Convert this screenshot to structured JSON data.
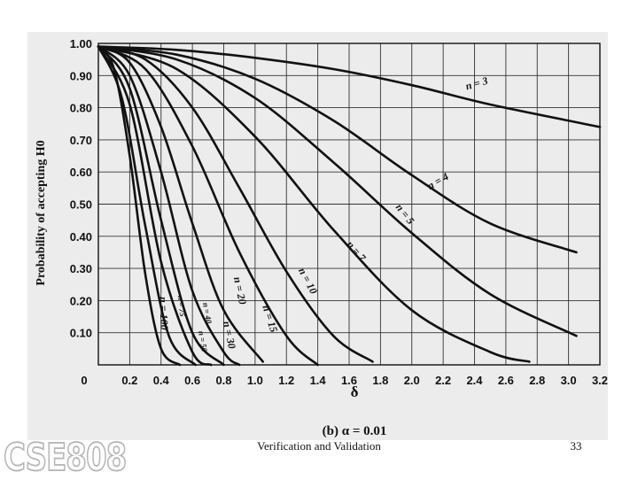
{
  "slide": {
    "logo_text": "CSE808",
    "footer_title": "Verification and Validation",
    "page_number": "33"
  },
  "chart_data": {
    "type": "line",
    "title": "(b) α = 0.01",
    "xlabel": "δ",
    "ylabel": "Probability of accepting H0",
    "xlim": [
      0,
      3.2
    ],
    "ylim": [
      0,
      1.0
    ],
    "x_ticks": [
      "0",
      "0.2",
      "0.4",
      "0.6",
      "0.8",
      "1.0",
      "1.2",
      "1.4",
      "1.6",
      "1.8",
      "2.0",
      "2.2",
      "2.4",
      "2.6",
      "2.8",
      "3.0",
      "3.2"
    ],
    "y_ticks": [
      "0",
      "0.10",
      "0.20",
      "0.30",
      "0.40",
      "0.50",
      "0.60",
      "0.70",
      "0.80",
      "0.90",
      "1.00"
    ],
    "grid": true,
    "series": [
      {
        "name": "n = 3",
        "label_text": "n = 3",
        "x": [
          0,
          0.5,
          1.0,
          1.5,
          2.0,
          2.5,
          3.2
        ],
        "y": [
          0.99,
          0.98,
          0.955,
          0.92,
          0.87,
          0.81,
          0.74
        ]
      },
      {
        "name": "n = 4",
        "label_text": "n = 4",
        "x": [
          0,
          0.5,
          1.0,
          1.5,
          2.0,
          2.5,
          3.05
        ],
        "y": [
          0.99,
          0.965,
          0.89,
          0.76,
          0.59,
          0.44,
          0.35
        ]
      },
      {
        "name": "n = 5",
        "label_text": "n = 5",
        "x": [
          0,
          0.5,
          1.0,
          1.5,
          2.0,
          2.5,
          3.05
        ],
        "y": [
          0.99,
          0.95,
          0.83,
          0.63,
          0.41,
          0.22,
          0.09
        ]
      },
      {
        "name": "n = 7",
        "label_text": "n = 7",
        "x": [
          0,
          0.5,
          1.0,
          1.5,
          2.0,
          2.5,
          2.75
        ],
        "y": [
          0.99,
          0.92,
          0.71,
          0.42,
          0.17,
          0.04,
          0.01
        ]
      },
      {
        "name": "n = 10",
        "label_text": "n = 10",
        "x": [
          0,
          0.3,
          0.6,
          0.9,
          1.2,
          1.5,
          1.75
        ],
        "y": [
          0.99,
          0.95,
          0.8,
          0.55,
          0.29,
          0.09,
          0.01
        ]
      },
      {
        "name": "n = 15",
        "label_text": "n = 15",
        "x": [
          0,
          0.3,
          0.6,
          0.9,
          1.2,
          1.4
        ],
        "y": [
          0.99,
          0.92,
          0.68,
          0.35,
          0.09,
          0.0
        ]
      },
      {
        "name": "n = 20",
        "label_text": "n = 20",
        "x": [
          0,
          0.2,
          0.4,
          0.6,
          0.8,
          1.05
        ],
        "y": [
          0.99,
          0.94,
          0.74,
          0.44,
          0.17,
          0.01
        ]
      },
      {
        "name": "n = 30",
        "label_text": "n = 30",
        "x": [
          0,
          0.2,
          0.4,
          0.6,
          0.8,
          0.9
        ],
        "y": [
          0.99,
          0.9,
          0.6,
          0.23,
          0.04,
          0.0
        ]
      },
      {
        "name": "n = 40",
        "label_text": "n = 40",
        "x": [
          0,
          0.2,
          0.4,
          0.6,
          0.8
        ],
        "y": [
          0.99,
          0.86,
          0.45,
          0.1,
          0.0
        ]
      },
      {
        "name": "n = 50",
        "label_text": "n = 50",
        "x": [
          0,
          0.2,
          0.4,
          0.6,
          0.72
        ],
        "y": [
          0.99,
          0.81,
          0.32,
          0.04,
          0.0
        ]
      },
      {
        "name": "n = 75",
        "label_text": "n = 75",
        "x": [
          0,
          0.15,
          0.3,
          0.45,
          0.62
        ],
        "y": [
          0.99,
          0.83,
          0.43,
          0.09,
          0.0
        ]
      },
      {
        "name": "n = 100",
        "label_text": "n = 100",
        "x": [
          0,
          0.1,
          0.2,
          0.3,
          0.4,
          0.52
        ],
        "y": [
          0.99,
          0.92,
          0.65,
          0.28,
          0.05,
          0.0
        ]
      }
    ]
  }
}
